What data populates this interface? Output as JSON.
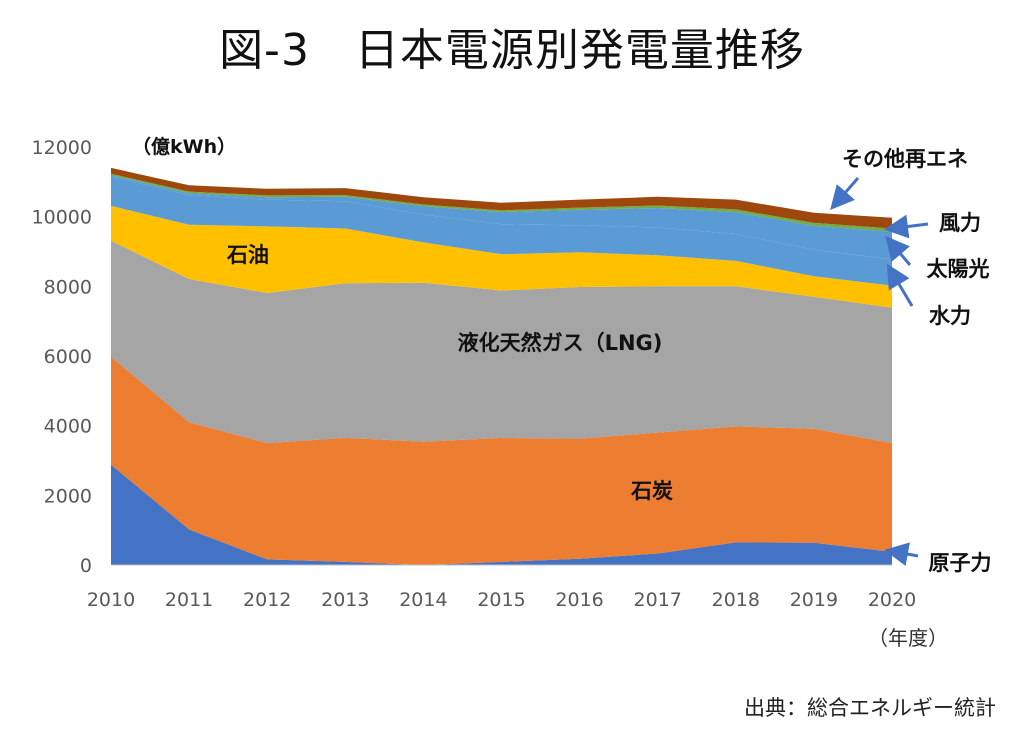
{
  "title": "図-3　日本電源別発電量推移",
  "source": "出典：総合エネルギー統計",
  "colors": {
    "nuclear": "#4472c4",
    "coal": "#ed7d31",
    "lng": "#a5a5a5",
    "oil": "#ffc000",
    "hydro": "#5b9bd5",
    "solar": "#5b9bd5",
    "wind": "#70ad47",
    "other_re": "#9e480e",
    "arrow": "#4472c4"
  },
  "chart_data": {
    "type": "area",
    "stacked": true,
    "ylabel": "（億kWh）",
    "xlabel": "（年度）",
    "ylim": [
      0,
      12000
    ],
    "yticks": [
      0,
      2000,
      4000,
      6000,
      8000,
      10000,
      12000
    ],
    "x": [
      "2010",
      "2011",
      "2012",
      "2013",
      "2014",
      "2015",
      "2016",
      "2017",
      "2018",
      "2019",
      "2020"
    ],
    "series": [
      {
        "key": "nuclear",
        "name": "原子力",
        "values": [
          2880,
          1020,
          160,
          90,
          0,
          90,
          180,
          330,
          650,
          640,
          380
        ]
      },
      {
        "key": "coal",
        "name": "石炭",
        "values": [
          3100,
          3080,
          3340,
          3560,
          3540,
          3560,
          3450,
          3470,
          3330,
          3270,
          3120
        ]
      },
      {
        "key": "lng",
        "name": "液化天然ガス（LNG)",
        "values": [
          3330,
          4110,
          4310,
          4440,
          4560,
          4230,
          4350,
          4200,
          4020,
          3790,
          3890
        ]
      },
      {
        "key": "oil",
        "name": "石油",
        "values": [
          1000,
          1560,
          1910,
          1570,
          1160,
          1040,
          1000,
          890,
          730,
          590,
          630
        ]
      },
      {
        "key": "hydro",
        "name": "水力",
        "values": [
          840,
          850,
          770,
          780,
          800,
          860,
          770,
          800,
          770,
          760,
          760
        ]
      },
      {
        "key": "solar",
        "name": "太陽光",
        "values": [
          40,
          50,
          70,
          130,
          240,
          350,
          450,
          560,
          630,
          690,
          790
        ]
      },
      {
        "key": "wind",
        "name": "風力",
        "values": [
          40,
          50,
          50,
          50,
          50,
          50,
          60,
          70,
          80,
          80,
          90
        ]
      },
      {
        "key": "other_re",
        "name": "その他再エネ",
        "values": [
          170,
          180,
          190,
          200,
          210,
          220,
          230,
          250,
          280,
          290,
          310
        ]
      }
    ]
  }
}
